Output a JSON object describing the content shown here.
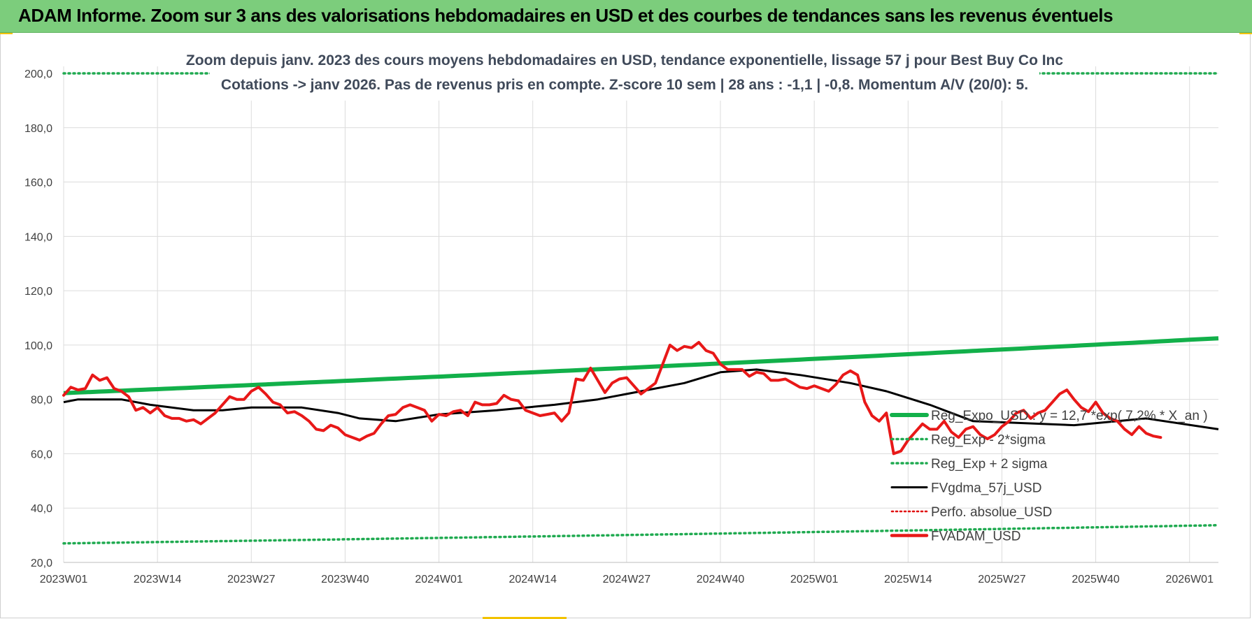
{
  "header": {
    "title": "ADAM Informe. Zoom sur 3 ans des valorisations hebdomadaires en USD et des courbes de tendances sans les revenus éventuels"
  },
  "colors": {
    "header_bg": "#7ccd7c",
    "trend": "#12b04a",
    "band": "#1faa50",
    "gdma": "#000000",
    "perfo": "#e00000",
    "price": "#e81818",
    "grid": "#dcdcdc"
  },
  "chart_data": {
    "type": "line",
    "title_line1": "Zoom depuis janv. 2023 des cours moyens hebdomadaires en USD, tendance exponentielle, lissage 57 j pour Best Buy Co Inc",
    "title_line2": "Cotations -> janv 2026. Pas de revenus pris en compte. Z-score 10 sem | 28 ans : -1,1 | -0,8. Momentum A/V (20/0): 5.",
    "ylim": [
      20,
      200
    ],
    "yticks": [
      20,
      40,
      60,
      80,
      100,
      120,
      140,
      160,
      180,
      200
    ],
    "ytick_labels": [
      "20,0",
      "40,0",
      "60,0",
      "80,0",
      "100,0",
      "120,0",
      "140,0",
      "160,0",
      "180,0",
      "200,0"
    ],
    "n_weeks": 161,
    "xtick_index": [
      0,
      13,
      26,
      39,
      52,
      65,
      78,
      91,
      104,
      117,
      130,
      143,
      156
    ],
    "xtick_labels": [
      "2023W01",
      "2023W14",
      "2023W27",
      "2023W40",
      "2024W01",
      "2024W14",
      "2024W27",
      "2024W40",
      "2025W01",
      "2025W14",
      "2025W27",
      "2025W40",
      "2026W01"
    ],
    "series": [
      {
        "name": "Reg_Expo_USD : y = 12,7 *exp( 7,2% * X_an )",
        "style": "thick-line",
        "start": 82.3,
        "end": 102.5
      },
      {
        "name": "Reg_Exp - 2*sigma",
        "style": "dotted",
        "start": 27.0,
        "end": 33.7
      },
      {
        "name": "Reg_Exp + 2 sigma",
        "style": "dotted",
        "start": 200,
        "end": 200
      },
      {
        "name": "FVgdma_57j_USD",
        "style": "line",
        "points": [
          [
            0,
            79
          ],
          [
            2,
            80
          ],
          [
            8,
            80
          ],
          [
            12,
            78
          ],
          [
            18,
            76
          ],
          [
            22,
            76
          ],
          [
            26,
            77
          ],
          [
            33,
            77
          ],
          [
            38,
            75
          ],
          [
            41,
            73
          ],
          [
            46,
            72
          ],
          [
            52,
            74.5
          ],
          [
            60,
            76
          ],
          [
            68,
            78
          ],
          [
            74,
            80
          ],
          [
            80,
            83
          ],
          [
            86,
            86
          ],
          [
            91,
            90
          ],
          [
            96,
            91
          ],
          [
            102,
            89
          ],
          [
            109,
            86
          ],
          [
            114,
            83
          ],
          [
            120,
            78
          ],
          [
            126,
            72
          ],
          [
            140,
            70.5
          ],
          [
            150,
            73
          ],
          [
            160,
            69
          ]
        ]
      },
      {
        "name": "Perfo. absolue_USD",
        "style": "dotted-red",
        "points": []
      },
      {
        "name": "FVADAM_USD",
        "style": "thick-red",
        "points": [
          [
            0,
            81.5
          ],
          [
            1,
            84.5
          ],
          [
            2,
            83.5
          ],
          [
            3,
            84
          ],
          [
            4,
            89
          ],
          [
            5,
            87
          ],
          [
            6,
            88
          ],
          [
            7,
            84
          ],
          [
            8,
            83
          ],
          [
            9,
            81
          ],
          [
            10,
            76
          ],
          [
            11,
            77
          ],
          [
            12,
            75
          ],
          [
            13,
            77
          ],
          [
            14,
            74
          ],
          [
            15,
            73
          ],
          [
            16,
            73
          ],
          [
            17,
            72
          ],
          [
            18,
            72.5
          ],
          [
            19,
            71
          ],
          [
            20,
            73
          ],
          [
            21,
            75
          ],
          [
            22,
            78
          ],
          [
            23,
            81
          ],
          [
            24,
            80
          ],
          [
            25,
            80
          ],
          [
            26,
            83
          ],
          [
            27,
            84.5
          ],
          [
            28,
            82
          ],
          [
            29,
            79
          ],
          [
            30,
            78
          ],
          [
            31,
            75
          ],
          [
            32,
            75.5
          ],
          [
            33,
            74
          ],
          [
            34,
            72
          ],
          [
            35,
            69
          ],
          [
            36,
            68.5
          ],
          [
            37,
            70.5
          ],
          [
            38,
            69.5
          ],
          [
            39,
            67
          ],
          [
            40,
            66
          ],
          [
            41,
            65
          ],
          [
            42,
            66.5
          ],
          [
            43,
            67.5
          ],
          [
            44,
            71
          ],
          [
            45,
            74
          ],
          [
            46,
            74.5
          ],
          [
            47,
            77
          ],
          [
            48,
            78
          ],
          [
            49,
            77
          ],
          [
            50,
            76
          ],
          [
            51,
            72
          ],
          [
            52,
            74.5
          ],
          [
            53,
            74
          ],
          [
            54,
            75.5
          ],
          [
            55,
            76
          ],
          [
            56,
            74
          ],
          [
            57,
            79
          ],
          [
            58,
            78
          ],
          [
            59,
            78
          ],
          [
            60,
            78.5
          ],
          [
            61,
            81.5
          ],
          [
            62,
            80
          ],
          [
            63,
            79.5
          ],
          [
            64,
            76
          ],
          [
            65,
            75
          ],
          [
            66,
            74
          ],
          [
            67,
            74.5
          ],
          [
            68,
            75
          ],
          [
            69,
            72
          ],
          [
            70,
            75
          ],
          [
            71,
            87.5
          ],
          [
            72,
            87
          ],
          [
            73,
            91.5
          ],
          [
            74,
            87
          ],
          [
            75,
            82.5
          ],
          [
            76,
            86
          ],
          [
            77,
            87.5
          ],
          [
            78,
            88
          ],
          [
            79,
            85
          ],
          [
            80,
            82
          ],
          [
            81,
            84
          ],
          [
            82,
            86
          ],
          [
            83,
            93
          ],
          [
            84,
            100
          ],
          [
            85,
            98
          ],
          [
            86,
            99.5
          ],
          [
            87,
            99
          ],
          [
            88,
            101
          ],
          [
            89,
            98
          ],
          [
            90,
            97
          ],
          [
            91,
            93
          ],
          [
            92,
            91
          ],
          [
            93,
            91
          ],
          [
            94,
            91
          ],
          [
            95,
            88.5
          ],
          [
            96,
            90
          ],
          [
            97,
            89.5
          ],
          [
            98,
            87
          ],
          [
            99,
            87
          ],
          [
            100,
            87.5
          ],
          [
            101,
            86
          ],
          [
            102,
            84.5
          ],
          [
            103,
            84
          ],
          [
            104,
            85
          ],
          [
            105,
            84
          ],
          [
            106,
            83
          ],
          [
            107,
            85.5
          ],
          [
            108,
            89
          ],
          [
            109,
            90.5
          ],
          [
            110,
            89
          ],
          [
            111,
            79
          ],
          [
            112,
            74
          ],
          [
            113,
            72
          ],
          [
            114,
            75
          ],
          [
            115,
            60
          ],
          [
            116,
            61
          ],
          [
            117,
            65
          ],
          [
            118,
            68
          ],
          [
            119,
            71
          ],
          [
            120,
            69
          ],
          [
            121,
            69
          ],
          [
            122,
            72
          ],
          [
            123,
            68
          ],
          [
            124,
            66
          ],
          [
            125,
            69
          ],
          [
            126,
            70
          ],
          [
            127,
            67
          ],
          [
            128,
            65.5
          ],
          [
            129,
            67
          ],
          [
            130,
            70
          ],
          [
            131,
            72
          ],
          [
            132,
            75
          ],
          [
            133,
            76
          ],
          [
            134,
            73
          ],
          [
            135,
            75
          ],
          [
            136,
            76
          ],
          [
            137,
            79
          ],
          [
            138,
            82
          ],
          [
            139,
            83.5
          ],
          [
            140,
            80
          ],
          [
            141,
            77
          ],
          [
            142,
            75.5
          ],
          [
            143,
            79
          ],
          [
            144,
            75
          ],
          [
            145,
            73
          ],
          [
            146,
            72
          ],
          [
            147,
            69
          ],
          [
            148,
            67
          ],
          [
            149,
            70
          ],
          [
            150,
            67.5
          ],
          [
            151,
            66.5
          ],
          [
            152,
            66
          ]
        ]
      }
    ]
  }
}
